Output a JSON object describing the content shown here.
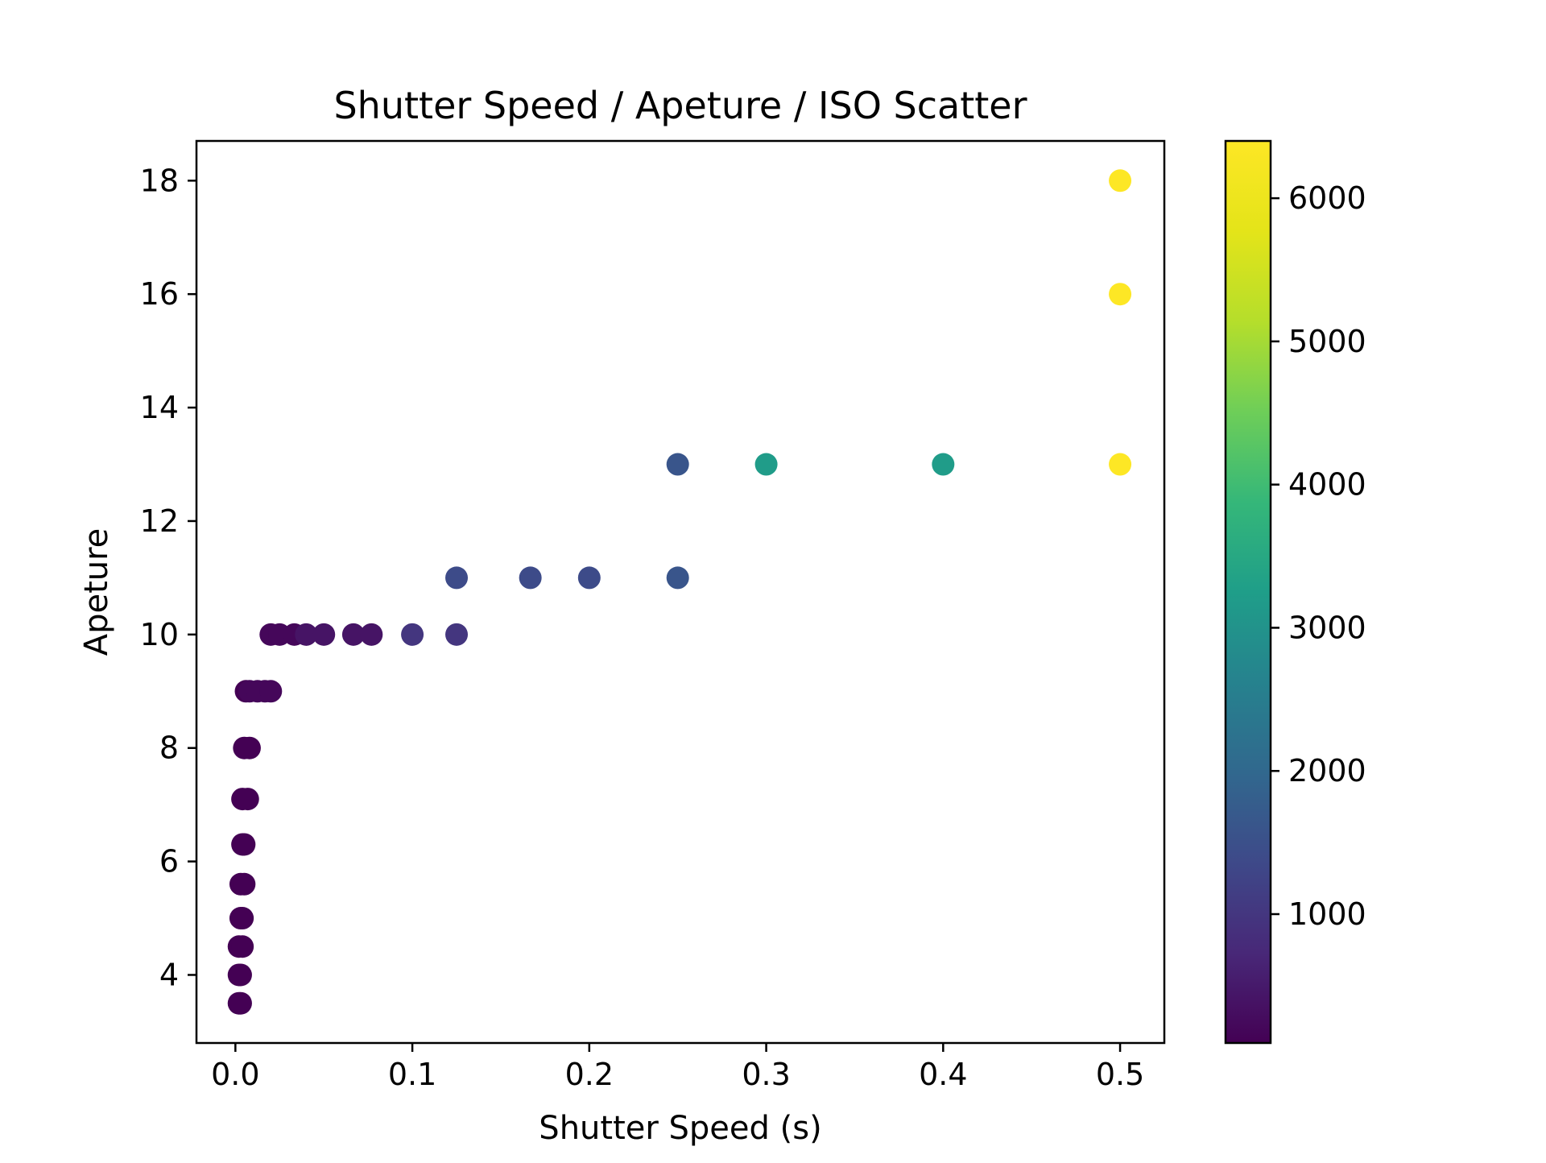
{
  "chart_data": {
    "type": "scatter",
    "title": "Shutter Speed / Apeture / ISO Scatter",
    "xlabel": "Shutter Speed (s)",
    "ylabel": "Apeture",
    "xlim": [
      -0.022,
      0.525
    ],
    "ylim": [
      2.8,
      18.7
    ],
    "xticks": [
      0.0,
      0.1,
      0.2,
      0.3,
      0.4,
      0.5
    ],
    "xtick_labels": [
      "0.0",
      "0.1",
      "0.2",
      "0.3",
      "0.4",
      "0.5"
    ],
    "yticks": [
      4,
      6,
      8,
      10,
      12,
      14,
      16,
      18
    ],
    "ytick_labels": [
      "4",
      "6",
      "8",
      "10",
      "12",
      "14",
      "16",
      "18"
    ],
    "colorbar": {
      "colormap": "viridis",
      "range": [
        100,
        6400
      ],
      "ticks": [
        1000,
        2000,
        3000,
        4000,
        5000,
        6000
      ],
      "tick_labels": [
        "1000",
        "2000",
        "3000",
        "4000",
        "5000",
        "6000"
      ]
    },
    "grid": false,
    "legend": "none",
    "points": [
      {
        "x": 0.002,
        "y": 3.5,
        "iso": 100
      },
      {
        "x": 0.003,
        "y": 3.5,
        "iso": 100
      },
      {
        "x": 0.002,
        "y": 4.0,
        "iso": 100
      },
      {
        "x": 0.003,
        "y": 4.0,
        "iso": 100
      },
      {
        "x": 0.002,
        "y": 4.5,
        "iso": 100
      },
      {
        "x": 0.004,
        "y": 4.5,
        "iso": 100
      },
      {
        "x": 0.003,
        "y": 5.0,
        "iso": 100
      },
      {
        "x": 0.004,
        "y": 5.0,
        "iso": 100
      },
      {
        "x": 0.003,
        "y": 5.6,
        "iso": 100
      },
      {
        "x": 0.005,
        "y": 5.6,
        "iso": 100
      },
      {
        "x": 0.004,
        "y": 6.3,
        "iso": 100
      },
      {
        "x": 0.005,
        "y": 6.3,
        "iso": 100
      },
      {
        "x": 0.004,
        "y": 7.1,
        "iso": 100
      },
      {
        "x": 0.007,
        "y": 7.1,
        "iso": 100
      },
      {
        "x": 0.005,
        "y": 8.0,
        "iso": 100
      },
      {
        "x": 0.008,
        "y": 8.0,
        "iso": 100
      },
      {
        "x": 0.006,
        "y": 9.0,
        "iso": 100
      },
      {
        "x": 0.008,
        "y": 9.0,
        "iso": 200
      },
      {
        "x": 0.0125,
        "y": 9.0,
        "iso": 200
      },
      {
        "x": 0.0167,
        "y": 9.0,
        "iso": 200
      },
      {
        "x": 0.02,
        "y": 9.0,
        "iso": 200
      },
      {
        "x": 0.02,
        "y": 10.0,
        "iso": 200
      },
      {
        "x": 0.025,
        "y": 10.0,
        "iso": 200
      },
      {
        "x": 0.0333,
        "y": 10.0,
        "iso": 200
      },
      {
        "x": 0.04,
        "y": 10.0,
        "iso": 400
      },
      {
        "x": 0.05,
        "y": 10.0,
        "iso": 400
      },
      {
        "x": 0.0667,
        "y": 10.0,
        "iso": 400
      },
      {
        "x": 0.0769,
        "y": 10.0,
        "iso": 400
      },
      {
        "x": 0.1,
        "y": 10.0,
        "iso": 1000
      },
      {
        "x": 0.125,
        "y": 10.0,
        "iso": 1000
      },
      {
        "x": 0.125,
        "y": 11.0,
        "iso": 1400
      },
      {
        "x": 0.1667,
        "y": 11.0,
        "iso": 1400
      },
      {
        "x": 0.2,
        "y": 11.0,
        "iso": 1400
      },
      {
        "x": 0.25,
        "y": 11.0,
        "iso": 1600
      },
      {
        "x": 0.25,
        "y": 13.0,
        "iso": 1600
      },
      {
        "x": 0.3,
        "y": 13.0,
        "iso": 3200
      },
      {
        "x": 0.4,
        "y": 13.0,
        "iso": 3200
      },
      {
        "x": 0.5,
        "y": 13.0,
        "iso": 6400
      },
      {
        "x": 0.5,
        "y": 16.0,
        "iso": 6400
      },
      {
        "x": 0.5,
        "y": 18.0,
        "iso": 6400
      }
    ]
  }
}
